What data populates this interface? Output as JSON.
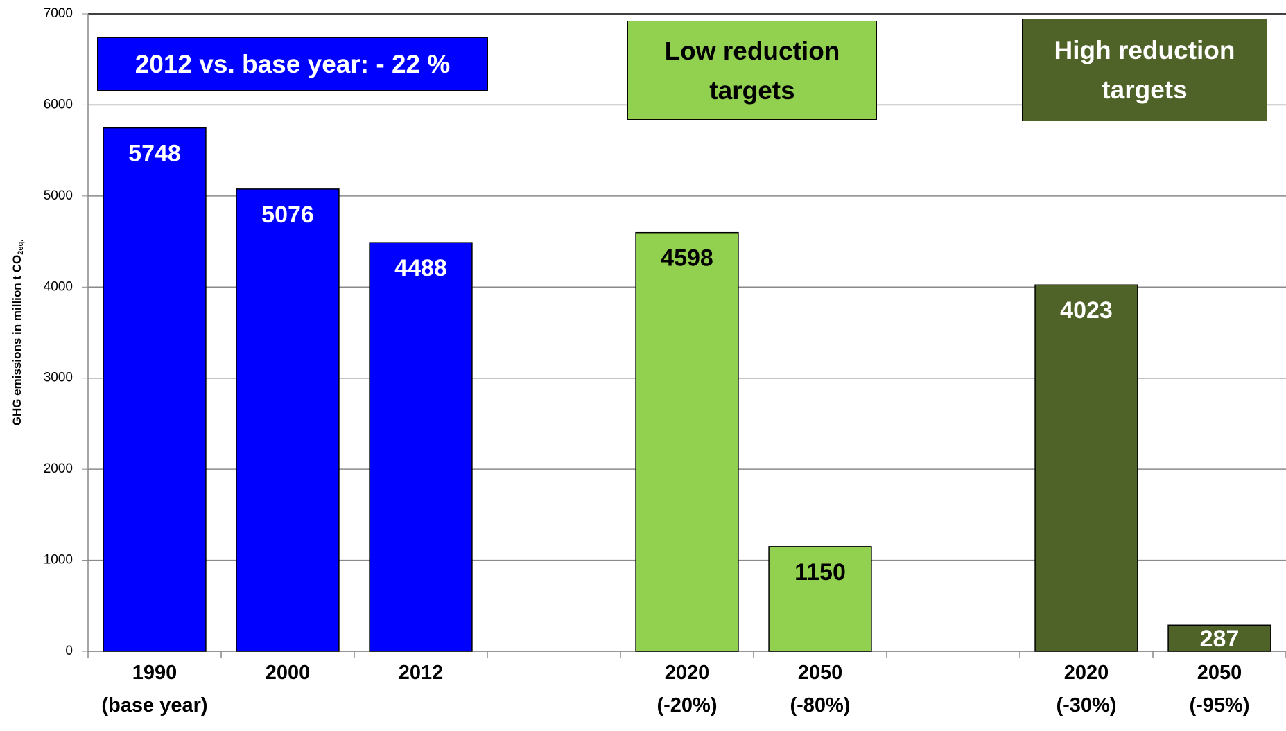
{
  "chart_data": {
    "type": "bar",
    "y_label": "GHG emissions in million t CO",
    "y_label_subscript": "2eq.",
    "categories": [
      "1990\n(base year)",
      "2000",
      "2012",
      null,
      "2020\n(-20%)",
      "2050\n(-80%)",
      null,
      "2020\n(-30%)",
      "2050\n(-95%)"
    ],
    "values": [
      5748,
      5076,
      4488,
      null,
      4598,
      1150,
      null,
      4023,
      287
    ],
    "colors": [
      "#0000ff",
      "#0000ff",
      "#0000ff",
      null,
      "#92d050",
      "#92d050",
      null,
      "#4f6228",
      "#4f6228"
    ],
    "label_colors": [
      "#ffffff",
      "#ffffff",
      "#ffffff",
      null,
      "#000000",
      "#000000",
      null,
      "#ffffff",
      "#ffffff"
    ],
    "ylim": [
      0,
      7000
    ],
    "yticks": [
      0,
      1000,
      2000,
      3000,
      4000,
      5000,
      6000,
      7000
    ],
    "grid": true,
    "annotations": [
      {
        "text": "2012 vs. base year: - 22 %",
        "color": "#0000ff",
        "text_color": "#ffffff"
      },
      {
        "text": "Low reduction\ntargets",
        "color": "#92d050",
        "text_color": "#000000"
      },
      {
        "text": "High reduction\ntargets",
        "color": "#4f6228",
        "text_color": "#ffffff"
      }
    ]
  }
}
